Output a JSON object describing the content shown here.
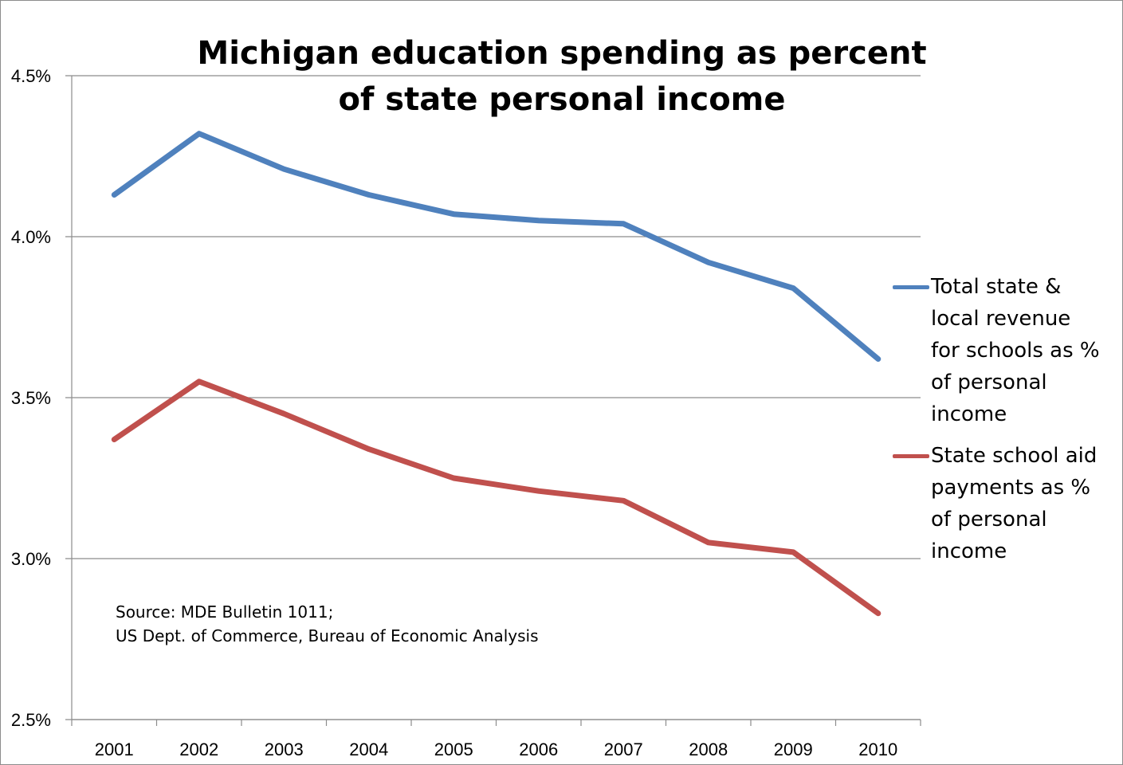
{
  "chart_data": {
    "type": "line",
    "title_lines": [
      "Michigan education spending as percent",
      "of state personal income"
    ],
    "categories": [
      "2001",
      "2002",
      "2003",
      "2004",
      "2005",
      "2006",
      "2007",
      "2008",
      "2009",
      "2010"
    ],
    "yticks": [
      "4.5%",
      "4.0%",
      "3.5%",
      "3.0%",
      "2.5%"
    ],
    "ytick_values": [
      4.5,
      4.0,
      3.5,
      3.0,
      2.5
    ],
    "ylim": [
      2.5,
      4.5
    ],
    "grid": true,
    "legend_position": "right",
    "series": [
      {
        "name_lines": [
          "Total state &",
          "local revenue",
          "for schools as %",
          "of personal",
          "income"
        ],
        "color": "#4f81bd",
        "values": [
          4.13,
          4.32,
          4.21,
          4.13,
          4.07,
          4.05,
          4.04,
          3.92,
          3.84,
          3.62
        ]
      },
      {
        "name_lines": [
          "State school aid",
          "payments as %",
          "of personal",
          "income"
        ],
        "color": "#c0504d",
        "values": [
          3.37,
          3.55,
          3.45,
          3.34,
          3.25,
          3.21,
          3.18,
          3.05,
          3.02,
          2.83
        ]
      }
    ],
    "source_lines": [
      "Source: MDE Bulletin 1011;",
      "US Dept. of Commerce, Bureau of Economic Analysis"
    ]
  }
}
